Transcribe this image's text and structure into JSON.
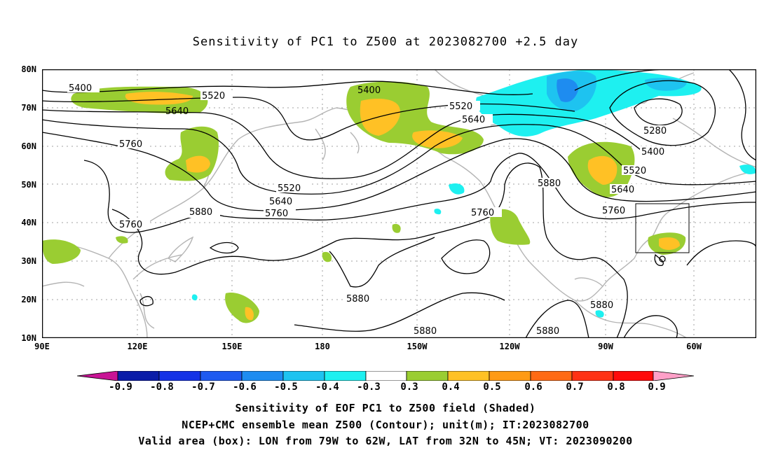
{
  "title": "Sensitivity of PC1 to Z500 at 2023082700 +2.5 day",
  "map": {
    "lat_labels": [
      "80N",
      "70N",
      "60N",
      "50N",
      "40N",
      "30N",
      "20N",
      "10N"
    ],
    "lon_labels": [
      "90E",
      "120E",
      "150E",
      "180",
      "150W",
      "120W",
      "90W",
      "60W"
    ],
    "contour_labels": [
      "5400",
      "5520",
      "5640",
      "5760",
      "5760",
      "5760",
      "5880",
      "5400",
      "5520",
      "5640",
      "5520",
      "5640",
      "5640",
      "5760",
      "5880",
      "5880",
      "5880",
      "5880",
      "5880",
      "5280",
      "5400",
      "5520",
      "5640",
      "5760",
      "5880"
    ],
    "box": {
      "lon_range": "79W to 62W",
      "lat_range": "32N to 45N"
    }
  },
  "colorbar": {
    "labels": [
      "-0.9",
      "-0.8",
      "-0.7",
      "-0.6",
      "-0.5",
      "-0.4",
      "-0.3",
      "0.3",
      "0.4",
      "0.5",
      "0.6",
      "0.7",
      "0.8",
      "0.9"
    ],
    "colors": [
      "#c81495",
      "#0a1ca8",
      "#1432e6",
      "#1e5af0",
      "#1e8cf0",
      "#1ec3f0",
      "#1ef0f0",
      "#ffffff",
      "#9acd32",
      "#ffc125",
      "#ff9a14",
      "#ff6a14",
      "#ff3214",
      "#ff0a0a",
      "#ffa0c8"
    ]
  },
  "captions": {
    "line1": "Sensitivity of EOF PC1 to Z500 field (Shaded)",
    "line2": "NCEP+CMC ensemble mean Z500 (Contour); unit(m); IT:2023082700",
    "line3": "Valid area (box): LON from 79W to 62W, LAT from 32N to 45N; VT: 2023090200"
  }
}
